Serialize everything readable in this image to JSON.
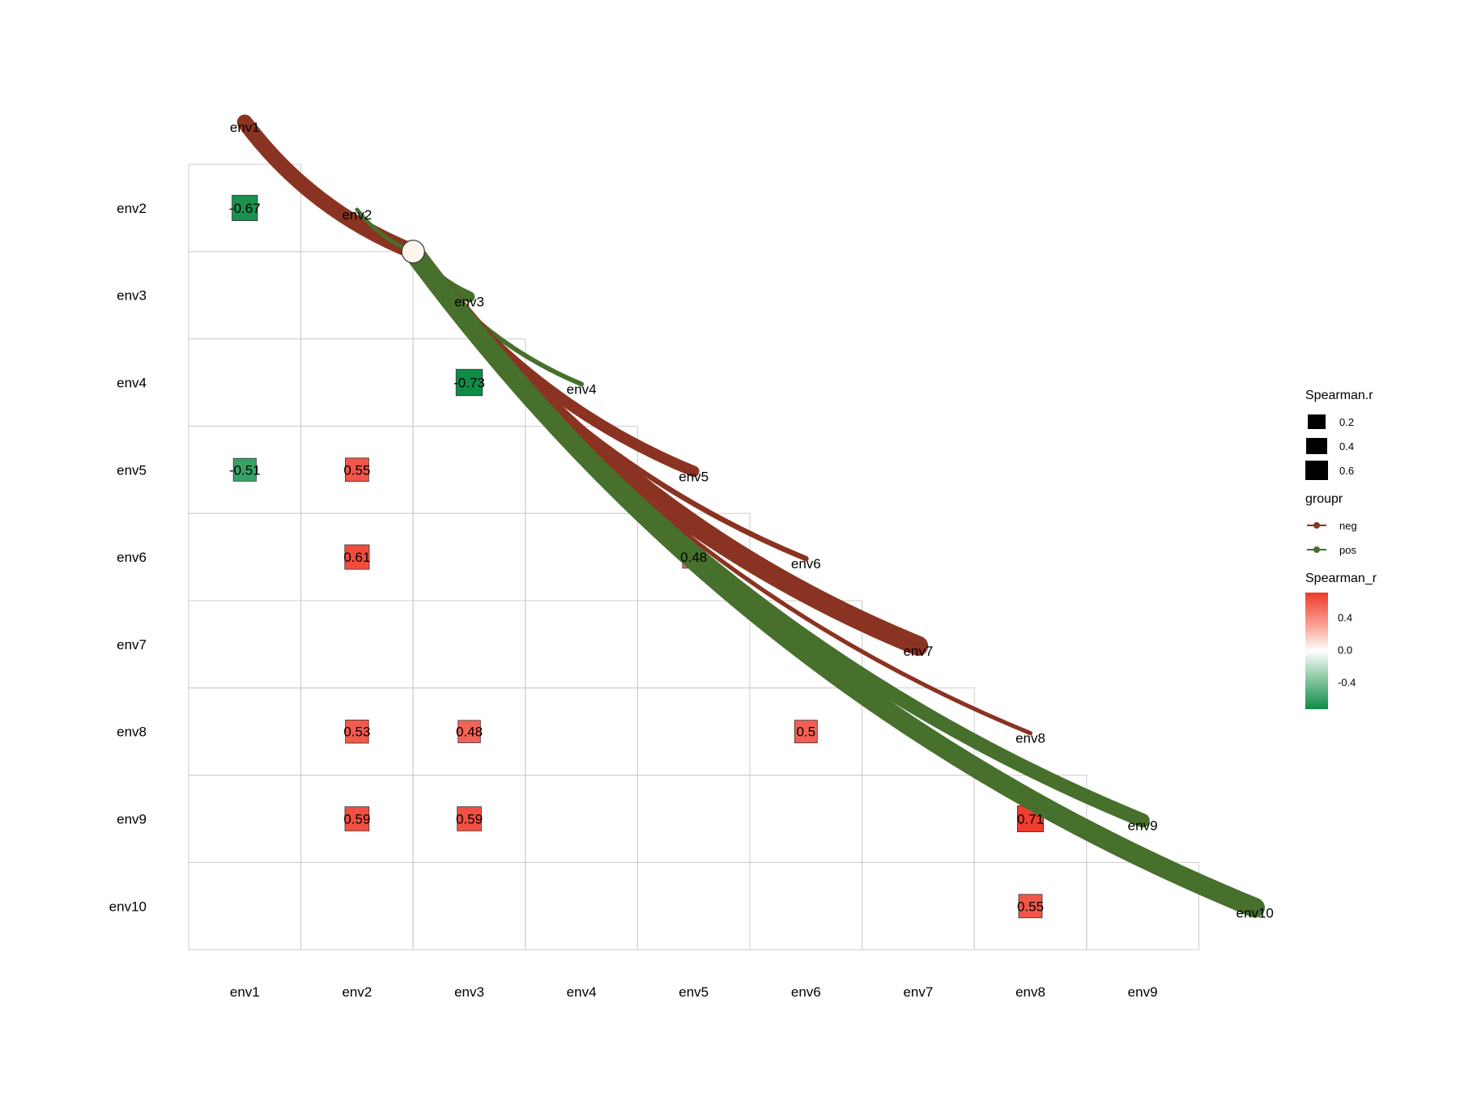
{
  "chart_data": {
    "type": "heatmap",
    "subtype": "lower-triangle correlation matrix with link curves",
    "row_labels": [
      "env2",
      "env3",
      "env4",
      "env5",
      "env6",
      "env7",
      "env8",
      "env9",
      "env10"
    ],
    "col_labels": [
      "env1",
      "env2",
      "env3",
      "env4",
      "env5",
      "env6",
      "env7",
      "env8",
      "env9"
    ],
    "diagonal_labels": [
      "env1",
      "env2",
      "env3",
      "env4",
      "env5",
      "env6",
      "env7",
      "env8",
      "env9",
      "env10"
    ],
    "cells": [
      {
        "row": "env2",
        "col": "env1",
        "value": -0.67,
        "label": "-0.67"
      },
      {
        "row": "env4",
        "col": "env3",
        "value": -0.73,
        "label": "-0.73"
      },
      {
        "row": "env5",
        "col": "env1",
        "value": -0.51,
        "label": "-0.51"
      },
      {
        "row": "env5",
        "col": "env2",
        "value": 0.55,
        "label": "0.55"
      },
      {
        "row": "env6",
        "col": "env2",
        "value": 0.61,
        "label": "0.61"
      },
      {
        "row": "env6",
        "col": "env5",
        "value": 0.48,
        "label": "0.48"
      },
      {
        "row": "env8",
        "col": "env2",
        "value": 0.53,
        "label": "0.53"
      },
      {
        "row": "env8",
        "col": "env3",
        "value": 0.48,
        "label": "0.48"
      },
      {
        "row": "env8",
        "col": "env6",
        "value": 0.5,
        "label": "0.5"
      },
      {
        "row": "env9",
        "col": "env2",
        "value": 0.59,
        "label": "0.59"
      },
      {
        "row": "env9",
        "col": "env3",
        "value": 0.59,
        "label": "0.59"
      },
      {
        "row": "env9",
        "col": "env8",
        "value": 0.71,
        "label": "0.71"
      },
      {
        "row": "env10",
        "col": "env8",
        "value": 0.55,
        "label": "0.55"
      }
    ],
    "links": [
      {
        "to": "env1",
        "group": "neg",
        "strength": 0.45
      },
      {
        "to": "env2",
        "group": "pos",
        "strength": 0.05
      },
      {
        "to": "env3",
        "group": "pos",
        "strength": 0.3
      },
      {
        "to": "env4",
        "group": "pos",
        "strength": 0.08
      },
      {
        "to": "env5",
        "group": "neg",
        "strength": 0.3
      },
      {
        "to": "env6",
        "group": "neg",
        "strength": 0.1
      },
      {
        "to": "env7",
        "group": "neg",
        "strength": 0.6
      },
      {
        "to": "env8",
        "group": "neg",
        "strength": 0.06
      },
      {
        "to": "env9",
        "group": "pos",
        "strength": 0.4
      },
      {
        "to": "env10",
        "group": "pos",
        "strength": 0.6
      }
    ],
    "grid": true,
    "legend_position": "right",
    "legend": {
      "size": {
        "title": "Spearman.r",
        "entries": [
          {
            "label": "0.2",
            "value": 0.2
          },
          {
            "label": "0.4",
            "value": 0.4
          },
          {
            "label": "0.6",
            "value": 0.6
          }
        ]
      },
      "color": {
        "title": "groupr",
        "entries": [
          {
            "label": "neg",
            "color": "#8b3322"
          },
          {
            "label": "pos",
            "color": "#46702c"
          }
        ]
      },
      "gradient": {
        "title": "Spearman_r",
        "min": -0.73,
        "max": 0.71,
        "ticks": [
          {
            "label": "0.4",
            "value": 0.4
          },
          {
            "label": "0.0",
            "value": 0.0
          },
          {
            "label": "-0.4",
            "value": -0.4
          }
        ],
        "colors": {
          "high": "#f03a2b",
          "mid": "#ffffff",
          "low": "#0e8c46"
        }
      }
    }
  }
}
